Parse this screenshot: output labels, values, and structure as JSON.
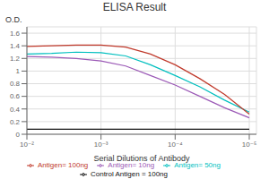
{
  "chart_data": {
    "type": "line",
    "title": "ELISA Result",
    "ylabel": "O.D.",
    "xlabel": "Serial Dilutions  of Antibody",
    "log": "x",
    "grid": true,
    "legend": "bottom",
    "x": [
      0.01,
      0.004641588833612777,
      0.0021544346900318843,
      0.001,
      0.00046415888336127773,
      0.00021544346900318823,
      0.0001,
      4.641588833612773e-05,
      2.1544346900318823e-05,
      1e-05
    ],
    "xlim": [
      0.01,
      8e-06
    ],
    "xticks": [
      {
        "value": 0.01,
        "label": "10⁻²"
      },
      {
        "value": 0.001,
        "label": "10⁻³"
      },
      {
        "value": 0.0001,
        "label": "10⁻⁴"
      },
      {
        "value": 1e-05,
        "label": "10⁻⁵"
      }
    ],
    "ylim": [
      0,
      1.7
    ],
    "yticks": [
      0,
      0.2,
      0.4,
      0.6,
      0.8,
      1,
      1.2,
      1.4,
      1.6
    ],
    "series": [
      {
        "name": "Control Antigen = 100ng",
        "color": "#111111",
        "values": [
          0.08,
          0.08,
          0.08,
          0.08,
          0.08,
          0.08,
          0.08,
          0.08,
          0.08,
          0.08
        ]
      },
      {
        "name": "Antigen= 10ng",
        "color": "#9B59B6",
        "values": [
          1.23,
          1.22,
          1.2,
          1.16,
          1.08,
          0.93,
          0.78,
          0.6,
          0.42,
          0.26
        ]
      },
      {
        "name": "Antigen= 50ng",
        "color": "#00BFBF",
        "values": [
          1.27,
          1.28,
          1.3,
          1.29,
          1.24,
          1.1,
          0.93,
          0.75,
          0.54,
          0.35
        ]
      },
      {
        "name": "Antigen= 100ng",
        "color": "#C0392B",
        "values": [
          1.39,
          1.4,
          1.41,
          1.41,
          1.38,
          1.27,
          1.1,
          0.88,
          0.63,
          0.32
        ]
      }
    ]
  }
}
